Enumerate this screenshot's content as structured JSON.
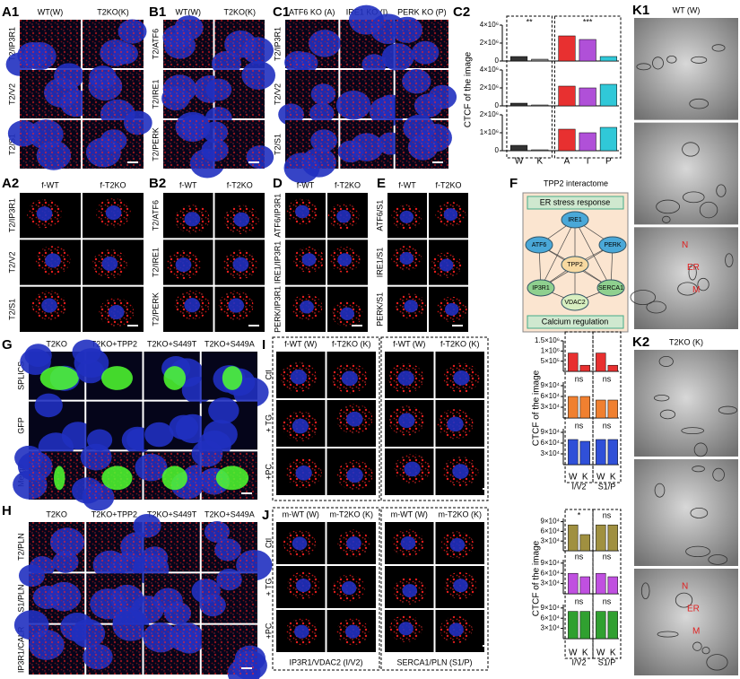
{
  "panels": [
    {
      "label": "A1",
      "columns": [
        "WT(W)",
        "T2KO(K)"
      ],
      "rows": [
        "T2/IP3R1",
        "T2/V2",
        "T2/S1"
      ]
    },
    {
      "label": "B1",
      "columns": [
        "WT(W)",
        "T2KO(K)"
      ],
      "rows": [
        "T2/ATF6",
        "T2/IRE1",
        "T2/PERK"
      ]
    },
    {
      "label": "C1",
      "columns": [
        "ATF6 KO (A)",
        "IRE1 KO (I)",
        "PERK KO (P)"
      ],
      "rows": [
        "T2/IP3R1",
        "T2/V2",
        "T2/S1"
      ]
    },
    {
      "label": "A2",
      "columns": [
        "f-WT",
        "f-T2KO"
      ],
      "rows": [
        "T2/IP3R1",
        "T2/V2",
        "T2/S1"
      ]
    },
    {
      "label": "B2",
      "columns": [
        "f-WT",
        "f-T2KO"
      ],
      "rows": [
        "T2/ATF6",
        "T2/IRE1",
        "T2/PERK"
      ]
    },
    {
      "label": "D",
      "columns": [
        "f-WT",
        "f-T2KO"
      ],
      "rows": [
        "ATF6/IP3R1",
        "IRE1/IP3R1",
        "PERK/IP3R1"
      ]
    },
    {
      "label": "E",
      "columns": [
        "f-WT",
        "f-T2KO"
      ],
      "rows": [
        "ATF6/S1",
        "IRE1/S1",
        "PERK/S1"
      ]
    },
    {
      "label": "G",
      "columns": [
        "T2KO",
        "T2KO+TPP2",
        "T2KO+S449T",
        "T2KO+S449A"
      ],
      "rows": [
        "SPLICS",
        "GFP",
        "Merge"
      ]
    },
    {
      "label": "H",
      "columns": [
        "T2KO",
        "T2KO+TPP2",
        "T2KO+S449T",
        "T2KO+S449A"
      ],
      "rows": [
        "T2/PLN",
        "S1/PLN",
        "IP3R1/CALR"
      ]
    },
    {
      "label": "I",
      "columns": [
        "f-WT (W)",
        "f-T2KO (K)",
        "f-WT (W)",
        "f-T2KO (K)"
      ],
      "rows": [
        "Ctl",
        "+ TG",
        "+PC"
      ]
    },
    {
      "label": "J",
      "columns": [
        "m-WT (W)",
        "m-T2KO (K)",
        "m-WT (W)",
        "m-T2KO (K)"
      ],
      "rows": [
        "Ctl",
        "+ TG",
        "+PC"
      ],
      "footers": [
        "IP3R1/VDAC2 (I/V2)",
        "SERCA1/PLN (S1/P)"
      ]
    }
  ],
  "chart_label": "C2",
  "interactome": {
    "label": "F",
    "title": "TPP2 interactome",
    "top": "ER stress response",
    "bottom": "Calcium regulation",
    "nodes": [
      "IRE1",
      "ATF6",
      "PERK",
      "TPP2",
      "IP3R1",
      "SERCA1",
      "VDAC2"
    ]
  },
  "em": [
    {
      "label": "K1",
      "caption": "WT (W)",
      "annotations": [
        "N",
        "ER",
        "M"
      ]
    },
    {
      "label": "K2",
      "caption": "T2KO (K)",
      "annotations": [
        "N",
        "ER",
        "M"
      ]
    }
  ],
  "chart_data": [
    {
      "type": "bar",
      "categories": [
        null,
        null,
        null,
        null,
        null
      ],
      "values": [
        500000,
        200000,
        2800000,
        2400000,
        500000
      ],
      "colors": [
        "#333333",
        "#888888",
        "#e83030",
        "#b050d8",
        "#30c8d8"
      ],
      "ylim": [
        0,
        4000000
      ],
      "yticks": [
        0,
        {
          "value": 2000000,
          "label": "2×10⁶"
        },
        {
          "value": 4000000,
          "label": "4×10⁶"
        }
      ],
      "annotations": [
        "**",
        "***"
      ]
    },
    {
      "type": "bar",
      "ylabel": "CTCF of the image",
      "categories": [
        null,
        null,
        null,
        null,
        null
      ],
      "values": [
        300000,
        100000,
        2200000,
        2000000,
        2400000
      ],
      "colors": [
        "#333333",
        "#888888",
        "#e83030",
        "#b050d8",
        "#30c8d8"
      ],
      "ylim": [
        0,
        4000000
      ],
      "yticks": [
        0,
        {
          "value": 2000000,
          "label": "2×10⁶"
        },
        {
          "value": 4000000,
          "label": "4×10⁶"
        }
      ]
    },
    {
      "type": "bar",
      "categories": [
        "W",
        "K",
        "A",
        "I",
        "P"
      ],
      "values": [
        300000,
        50000,
        1200000,
        1000000,
        1300000
      ],
      "colors": [
        "#333333",
        "#888888",
        "#e83030",
        "#b050d8",
        "#30c8d8"
      ],
      "ylim": [
        0,
        2000000
      ],
      "yticks": [
        0,
        {
          "value": 1000000,
          "label": "1×10⁶"
        },
        {
          "value": 2000000,
          "label": "2×10⁶"
        }
      ]
    },
    {
      "type": "bar",
      "categories": [
        null,
        null,
        null,
        null
      ],
      "values": [
        900000,
        300000,
        900000,
        300000
      ],
      "colors": [
        "#e83030",
        "#e83030",
        "#e83030",
        "#e83030"
      ],
      "ylim": [
        0,
        1500000
      ],
      "yticks": [
        {
          "value": 500000,
          "label": "5×10⁵"
        },
        {
          "value": 1000000,
          "label": "1×10⁶"
        },
        {
          "value": 1500000,
          "label": "1.5×10⁶"
        }
      ]
    },
    {
      "type": "bar",
      "ylabel": "CTCF of the image",
      "categories": [
        null,
        null,
        null,
        null
      ],
      "values": [
        60000,
        60000,
        50000,
        50000
      ],
      "colors": [
        "#f08030",
        "#f08030",
        "#f08030",
        "#f08030"
      ],
      "ylim": [
        0,
        100000
      ],
      "yticks": [
        {
          "value": 30000,
          "label": "3×10⁴"
        },
        {
          "value": 60000,
          "label": "6×10⁴"
        },
        {
          "value": 90000,
          "label": "9×10⁴"
        }
      ],
      "annotations": [
        "ns",
        "ns"
      ]
    },
    {
      "type": "bar",
      "categories": [
        "W",
        "K",
        "W",
        "K"
      ],
      "groups": [
        "I/V2",
        "S1/P"
      ],
      "values": [
        70000,
        65000,
        70000,
        70000
      ],
      "colors": [
        "#3050d8",
        "#3050d8",
        "#3050d8",
        "#3050d8"
      ],
      "ylim": [
        0,
        100000
      ],
      "yticks": [
        {
          "value": 30000,
          "label": "3×10⁴"
        },
        {
          "value": 60000,
          "label": "6×10⁴"
        },
        {
          "value": 90000,
          "label": "9×10⁴"
        }
      ],
      "annotations": [
        "ns",
        "ns"
      ]
    },
    {
      "type": "bar",
      "categories": [
        null,
        null,
        null,
        null
      ],
      "values": [
        80000,
        50000,
        80000,
        80000
      ],
      "colors": [
        "#a09040",
        "#a09040",
        "#a09040",
        "#a09040"
      ],
      "ylim": [
        0,
        100000
      ],
      "yticks": [
        {
          "value": 30000,
          "label": "3×10⁴"
        },
        {
          "value": 60000,
          "label": "6×10⁴"
        },
        {
          "value": 90000,
          "label": "9×10⁴"
        }
      ],
      "annotations": [
        "*",
        "ns"
      ]
    },
    {
      "type": "bar",
      "ylabel": "CTCF of the image",
      "categories": [
        null,
        null,
        null,
        null
      ],
      "values": [
        60000,
        50000,
        60000,
        50000
      ],
      "colors": [
        "#c050e0",
        "#c050e0",
        "#c050e0",
        "#c050e0"
      ],
      "ylim": [
        0,
        100000
      ],
      "yticks": [
        {
          "value": 30000,
          "label": "3×10⁴"
        },
        {
          "value": 60000,
          "label": "6×10⁴"
        },
        {
          "value": 90000,
          "label": "9×10⁴"
        }
      ],
      "annotations": [
        "ns",
        "ns"
      ]
    },
    {
      "type": "bar",
      "categories": [
        "W",
        "K",
        "W",
        "K"
      ],
      "groups": [
        "I/V2",
        "S1/P"
      ],
      "values": [
        80000,
        80000,
        80000,
        80000
      ],
      "colors": [
        "#30a030",
        "#30a030",
        "#30a030",
        "#30a030"
      ],
      "ylim": [
        0,
        100000
      ],
      "yticks": [
        {
          "value": 30000,
          "label": "3×10⁴"
        },
        {
          "value": 60000,
          "label": "6×10⁴"
        },
        {
          "value": 90000,
          "label": "9×10⁴"
        }
      ],
      "annotations": [
        "ns",
        "ns"
      ]
    }
  ]
}
